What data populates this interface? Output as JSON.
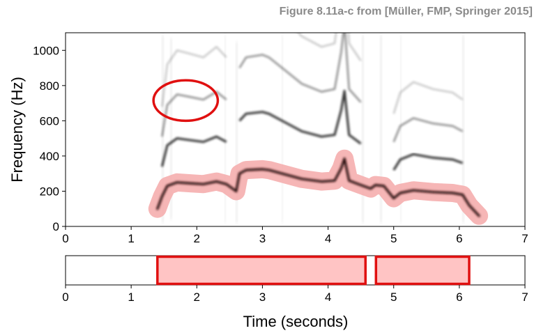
{
  "caption": "Figure 8.11a-c from [Müller, FMP, Springer 2015]",
  "chart_data": [
    {
      "type": "heatmap",
      "subtype": "spectrogram",
      "ylabel": "Frequency (Hz)",
      "xlim": [
        0,
        7
      ],
      "ylim": [
        0,
        1100
      ],
      "x_ticks": [
        0,
        1,
        2,
        3,
        4,
        5,
        6,
        7
      ],
      "y_ticks": [
        0,
        200,
        400,
        600,
        800,
        1000
      ],
      "grid": false,
      "colormap": "white-to-black",
      "highlight_color": "#f4a9a9",
      "annotation_color": "#e01010",
      "f0_trajectory": [
        [
          1.4,
          100
        ],
        [
          1.47,
          170
        ],
        [
          1.55,
          230
        ],
        [
          1.7,
          250
        ],
        [
          1.9,
          245
        ],
        [
          2.1,
          240
        ],
        [
          2.3,
          255
        ],
        [
          2.45,
          240
        ],
        [
          2.6,
          200
        ],
        [
          2.65,
          300
        ],
        [
          2.75,
          320
        ],
        [
          3.0,
          325
        ],
        [
          3.1,
          320
        ],
        [
          3.3,
          300
        ],
        [
          3.6,
          270
        ],
        [
          3.9,
          255
        ],
        [
          4.1,
          260
        ],
        [
          4.2,
          330
        ],
        [
          4.25,
          385
        ],
        [
          4.32,
          260
        ],
        [
          4.5,
          235
        ],
        [
          4.65,
          215
        ],
        [
          4.72,
          235
        ],
        [
          4.85,
          230
        ],
        [
          5.0,
          160
        ],
        [
          5.1,
          190
        ],
        [
          5.3,
          205
        ],
        [
          5.6,
          195
        ],
        [
          5.9,
          190
        ],
        [
          6.05,
          180
        ],
        [
          6.15,
          120
        ],
        [
          6.3,
          60
        ]
      ],
      "circled_region": {
        "x_center": 1.83,
        "y_center": 715,
        "x_radius": 0.49,
        "y_radius": 115
      }
    },
    {
      "type": "bar",
      "subtype": "segment-timeline",
      "xlabel": "Time (seconds)",
      "xlim": [
        0,
        7
      ],
      "x_ticks": [
        0,
        1,
        2,
        3,
        4,
        5,
        6,
        7
      ],
      "segments": [
        {
          "start": 1.4,
          "end": 4.57
        },
        {
          "start": 4.73,
          "end": 6.15
        }
      ],
      "fill_color": "#ffc4c4",
      "border_color": "#e01010"
    }
  ]
}
